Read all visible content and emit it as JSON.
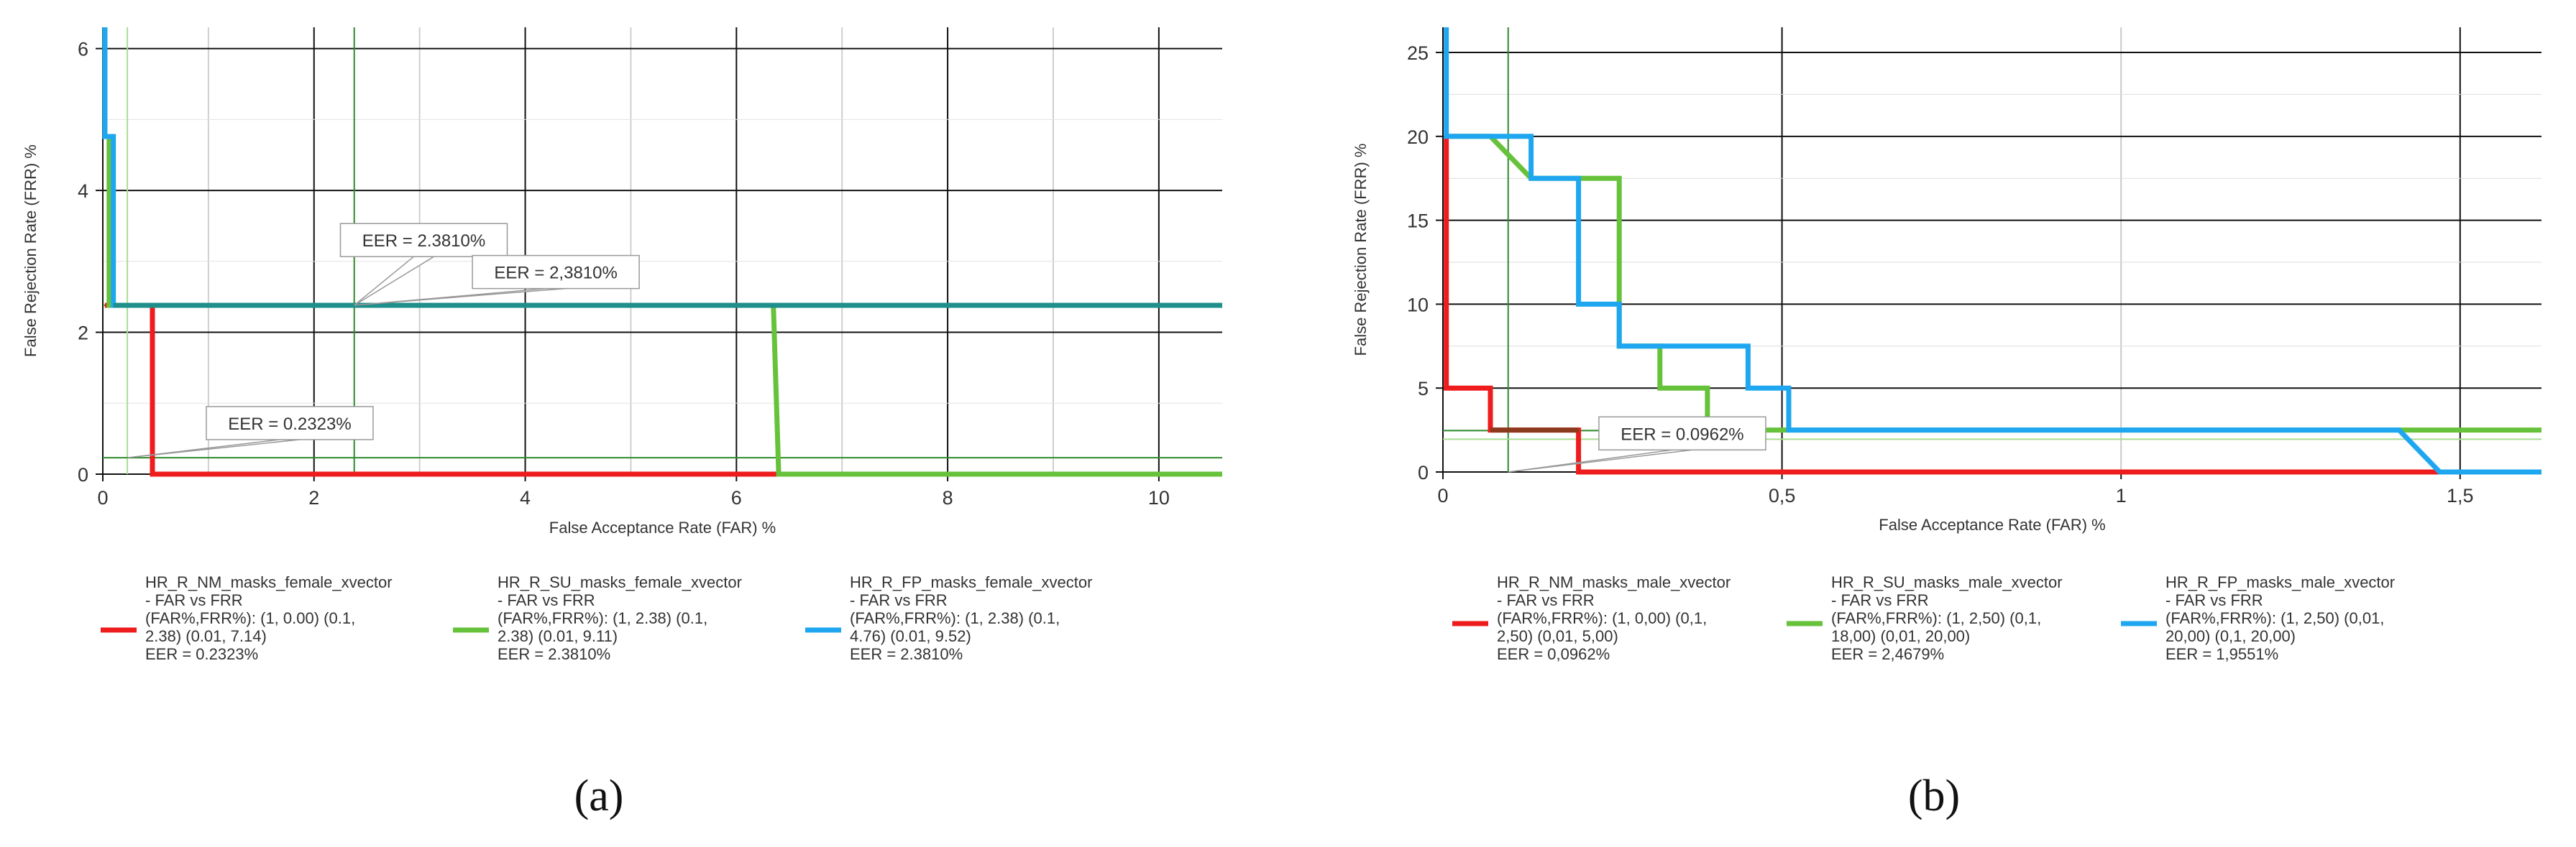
{
  "chart_data": [
    {
      "type": "line",
      "panel_label": "(a)",
      "xlabel": "False Acceptance Rate (FAR) %",
      "ylabel": "False Rejection Rate (FRR) %",
      "xlim": [
        0,
        10.6
      ],
      "ylim": [
        0,
        6.3
      ],
      "x_ticks": [
        0,
        2,
        4,
        6,
        8,
        10
      ],
      "y_ticks": [
        0,
        2,
        4,
        6
      ],
      "grid": true,
      "legend_position": "bottom",
      "series": [
        {
          "name": "HR_R_NM_masks_female_xvector",
          "legend_lines": [
            "HR_R_NM_masks_female_xvector",
            "- FAR vs FRR",
            "(FAR%,FRR%): (1, 0.00) (0.1,",
            "2.38) (0.01, 7.14)",
            "EER = 0.2323%"
          ],
          "color": "#ee1c1c",
          "points": [
            [
              0.02,
              2.38
            ],
            [
              0.47,
              2.38
            ],
            [
              0.47,
              0
            ],
            [
              10.6,
              0
            ]
          ]
        },
        {
          "name": "HR_R_SU_masks_female_xvector",
          "legend_lines": [
            "HR_R_SU_masks_female_xvector",
            "- FAR vs FRR",
            "(FAR%,FRR%): (1, 2.38) (0.1,",
            "2.38) (0.01, 9.11)",
            "EER = 2.3810%"
          ],
          "color": "#66c23a",
          "points": [
            [
              0.02,
              6.3
            ],
            [
              0.02,
              4.76
            ],
            [
              0.06,
              4.76
            ],
            [
              0.06,
              2.38
            ],
            [
              6.35,
              2.38
            ],
            [
              6.4,
              0
            ],
            [
              10.6,
              0
            ]
          ]
        },
        {
          "name": "HR_R_FP_masks_female_xvector",
          "legend_lines": [
            "HR_R_FP_masks_female_xvector",
            "- FAR vs FRR",
            "(FAR%,FRR%): (1, 2.38) (0.1,",
            "4.76) (0.01, 9.52)",
            "EER = 2.3810%"
          ],
          "color": "#1ea7f0",
          "points": [
            [
              0.02,
              6.3
            ],
            [
              0.02,
              4.76
            ],
            [
              0.1,
              4.76
            ],
            [
              0.1,
              2.38
            ],
            [
              10.6,
              2.38
            ]
          ]
        }
      ],
      "eer_lines": [
        {
          "type": "vertical",
          "x": 2.381,
          "color": "#2e8b2e"
        },
        {
          "type": "horizontal",
          "y": 2.381,
          "color": "#2e8b2e"
        },
        {
          "type": "vertical",
          "x": 0.2323,
          "color": "#a8dd90"
        },
        {
          "type": "horizontal",
          "y": 0.2323,
          "color": "#2e8b2e"
        }
      ],
      "annotations": [
        {
          "text": "EER = 2.3810%",
          "x": 2.381,
          "y": 2.381,
          "label_at": [
            2.25,
            3.3
          ]
        },
        {
          "text": "EER = 2,3810%",
          "x": 2.381,
          "y": 2.381,
          "label_at": [
            3.5,
            2.85
          ]
        },
        {
          "text": "EER = 0.2323%",
          "x": 0.2323,
          "y": 0.2323,
          "label_at": [
            0.98,
            0.72
          ]
        }
      ]
    },
    {
      "type": "line",
      "panel_label": "(b)",
      "xlabel": "False Acceptance Rate (FAR) %",
      "ylabel": "False Rejection Rate (FRR) %",
      "xlim": [
        0,
        1.62
      ],
      "ylim": [
        0,
        26.5
      ],
      "x_ticks": [
        0,
        0.5,
        1,
        1.5
      ],
      "x_tick_labels": [
        "0",
        "0,5",
        "1",
        "1,5"
      ],
      "y_ticks": [
        0,
        5,
        10,
        15,
        20,
        25
      ],
      "grid": true,
      "legend_position": "bottom",
      "series": [
        {
          "name": "HR_R_NM_masks_male_xvector",
          "legend_lines": [
            "HR_R_NM_masks_male_xvector",
            "- FAR vs FRR",
            "(FAR%,FRR%): (1, 0,00) (0,1,",
            "2,50) (0,01, 5,00)",
            "EER = 0,0962%"
          ],
          "color": "#ee1c1c",
          "points": [
            [
              0.005,
              20
            ],
            [
              0.005,
              5
            ],
            [
              0.07,
              5
            ],
            [
              0.07,
              2.5
            ],
            [
              0.2,
              2.5
            ],
            [
              0.2,
              0
            ],
            [
              1.62,
              0
            ]
          ]
        },
        {
          "name": "HR_R_SU_masks_male_xvector",
          "legend_lines": [
            "HR_R_SU_masks_male_xvector",
            "- FAR vs FRR",
            "(FAR%,FRR%): (1, 2,50) (0,1,",
            "18,00) (0,01, 20,00)",
            "EER = 2,4679%"
          ],
          "color": "#66c23a",
          "points": [
            [
              0.01,
              20
            ],
            [
              0.07,
              20
            ],
            [
              0.13,
              17.5
            ],
            [
              0.26,
              17.5
            ],
            [
              0.26,
              7.5
            ],
            [
              0.32,
              7.5
            ],
            [
              0.32,
              5
            ],
            [
              0.39,
              5
            ],
            [
              0.39,
              2.5
            ],
            [
              1.62,
              2.5
            ]
          ]
        },
        {
          "name": "HR_R_FP_masks_male_xvector",
          "legend_lines": [
            "HR_R_FP_masks_male_xvector",
            "- FAR vs FRR",
            "(FAR%,FRR%): (1, 2,50) (0,01,",
            "20,00) (0,1, 20,00)",
            "EER = 1,9551%"
          ],
          "color": "#1ea7f0",
          "points": [
            [
              0.005,
              26.5
            ],
            [
              0.005,
              20
            ],
            [
              0.13,
              20
            ],
            [
              0.13,
              17.5
            ],
            [
              0.2,
              17.5
            ],
            [
              0.2,
              10
            ],
            [
              0.26,
              10
            ],
            [
              0.26,
              7.5
            ],
            [
              0.45,
              7.5
            ],
            [
              0.45,
              5
            ],
            [
              0.51,
              5
            ],
            [
              0.51,
              2.5
            ],
            [
              1.41,
              2.5
            ],
            [
              1.47,
              0
            ],
            [
              1.62,
              0
            ]
          ]
        }
      ],
      "eer_lines": [
        {
          "type": "vertical",
          "x": 0.0962,
          "color": "#2e8b2e"
        },
        {
          "type": "horizontal",
          "y": 2.468,
          "color": "#2e8b2e"
        },
        {
          "type": "horizontal",
          "y": 1.955,
          "color": "#a8dd90"
        }
      ],
      "annotations": [
        {
          "text": "EER = 0.0962%",
          "x": 0.0962,
          "y": 0,
          "label_at": [
            0.23,
            2.3
          ]
        }
      ]
    }
  ]
}
